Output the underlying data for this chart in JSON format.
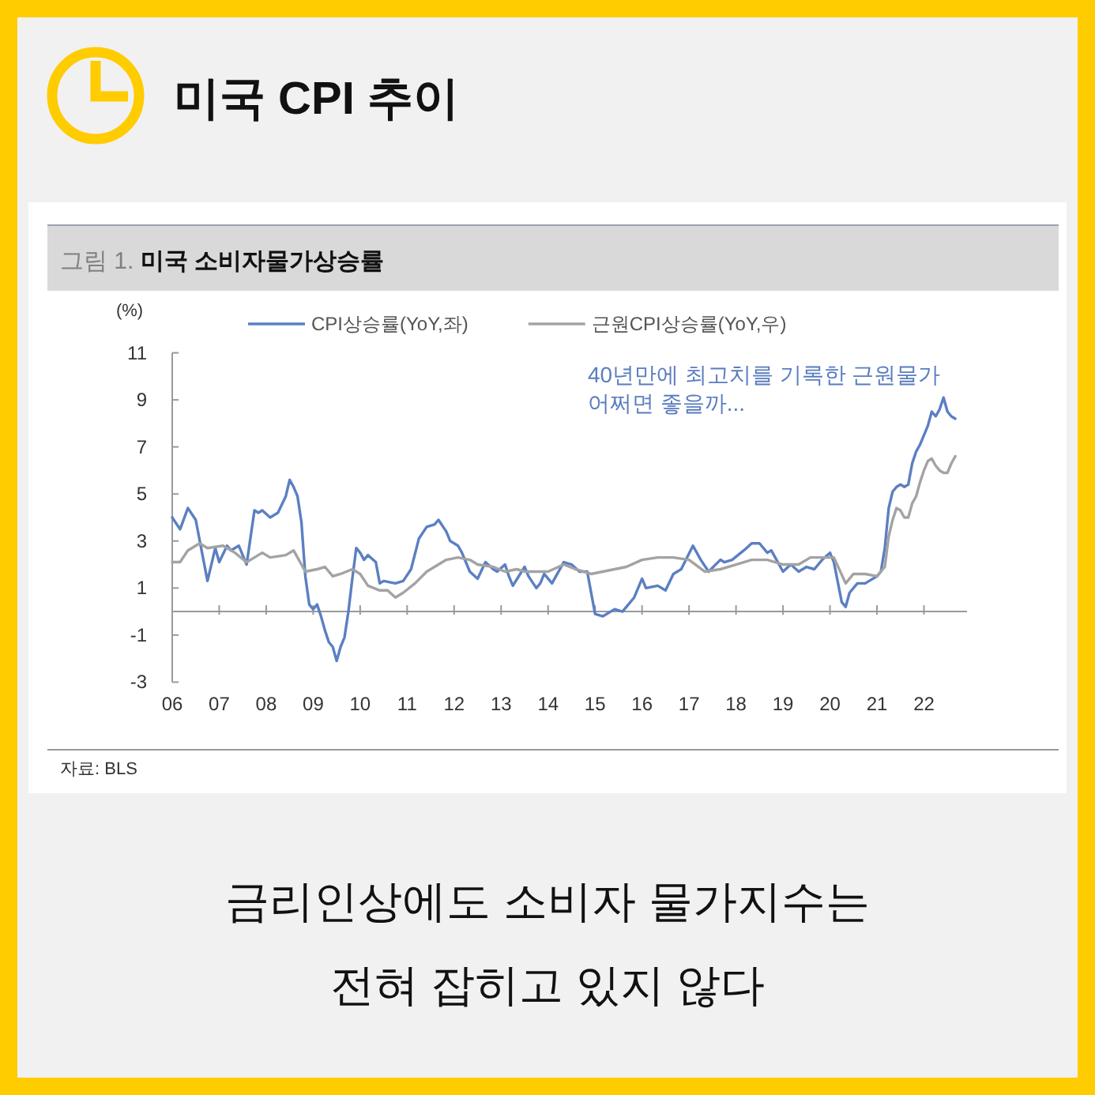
{
  "chart_data": {
    "type": "line",
    "title": "미국 CPI 추이",
    "subtitle": "그림 1. **미국 소비자물가상승률**",
    "ylabel": "(%)",
    "annotations": [
      "40년만에 최고치를 기록한 근원물가 어쩌면 좋을까...",
      "자료: BLS",
      "금리인상에도 소비자 물가지수는 전혀 잡히고 있지 않다"
    ],
    "xlim": [
      "2006-01",
      "2022-12"
    ],
    "xticks": [
      {
        "value": "2006",
        "label": "06"
      },
      {
        "value": "2007",
        "label": "07"
      },
      {
        "value": "2008",
        "label": "08"
      },
      {
        "value": "2009",
        "label": "09"
      },
      {
        "value": "2010",
        "label": "10"
      },
      {
        "value": "2011",
        "label": "11"
      },
      {
        "value": "2012",
        "label": "12"
      },
      {
        "value": "2013",
        "label": "13"
      },
      {
        "value": "2014",
        "label": "14"
      },
      {
        "value": "2015",
        "label": "15"
      },
      {
        "value": "2016",
        "label": "16"
      },
      {
        "value": "2017",
        "label": "17"
      },
      {
        "value": "2018",
        "label": "18"
      },
      {
        "value": "2019",
        "label": "19"
      },
      {
        "value": "2020",
        "label": "20"
      },
      {
        "value": "2021",
        "label": "21"
      },
      {
        "value": "2022",
        "label": "22"
      }
    ],
    "ylim": [
      -3,
      11
    ],
    "yticks": [
      -3,
      -1,
      1,
      3,
      5,
      7,
      9,
      11
    ],
    "legend": "top",
    "series": [
      {
        "name": "CPI상승률(YoY,좌)",
        "color": "#5b7fc2",
        "x": [
          "2006-01",
          "2006-03",
          "2006-05",
          "2006-07",
          "2006-10",
          "2006-12",
          "2007-01",
          "2007-03",
          "2007-04",
          "2007-06",
          "2007-08",
          "2007-10",
          "2007-11",
          "2007-12",
          "2008-02",
          "2008-04",
          "2008-06",
          "2008-07",
          "2008-08",
          "2008-09",
          "2008-10",
          "2008-11",
          "2008-12",
          "2009-01",
          "2009-02",
          "2009-03",
          "2009-04",
          "2009-05",
          "2009-06",
          "2009-07",
          "2009-08",
          "2009-09",
          "2009-10",
          "2009-11",
          "2009-12",
          "2010-01",
          "2010-02",
          "2010-03",
          "2010-05",
          "2010-06",
          "2010-07",
          "2010-10",
          "2010-12",
          "2011-02",
          "2011-04",
          "2011-06",
          "2011-08",
          "2011-09",
          "2011-11",
          "2011-12",
          "2012-02",
          "2012-03",
          "2012-05",
          "2012-07",
          "2012-09",
          "2012-11",
          "2012-12",
          "2013-02",
          "2013-03",
          "2013-04",
          "2013-07",
          "2013-08",
          "2013-10",
          "2013-11",
          "2013-12",
          "2014-02",
          "2014-05",
          "2014-07",
          "2014-09",
          "2014-11",
          "2015-01",
          "2015-03",
          "2015-06",
          "2015-08",
          "2015-11",
          "2016-01",
          "2016-02",
          "2016-05",
          "2016-07",
          "2016-09",
          "2016-11",
          "2017-02",
          "2017-04",
          "2017-06",
          "2017-09",
          "2017-10",
          "2017-12",
          "2018-03",
          "2018-05",
          "2018-07",
          "2018-09",
          "2018-10",
          "2019-01",
          "2019-03",
          "2019-05",
          "2019-07",
          "2019-09",
          "2019-11",
          "2020-01",
          "2020-02",
          "2020-04",
          "2020-05",
          "2020-06",
          "2020-08",
          "2020-10",
          "2020-12",
          "2021-01",
          "2021-02",
          "2021-03",
          "2021-04",
          "2021-05",
          "2021-06",
          "2021-07",
          "2021-08",
          "2021-09",
          "2021-10",
          "2021-11",
          "2021-12",
          "2022-01",
          "2022-02",
          "2022-03",
          "2022-04",
          "2022-05",
          "2022-06",
          "2022-07",
          "2022-08",
          "2022-09"
        ],
        "values": [
          4.0,
          3.5,
          4.4,
          3.9,
          1.3,
          2.7,
          2.1,
          2.8,
          2.6,
          2.8,
          2.0,
          4.3,
          4.2,
          4.3,
          4.0,
          4.2,
          4.9,
          5.6,
          5.3,
          4.9,
          3.8,
          1.5,
          0.3,
          0.1,
          0.3,
          -0.2,
          -0.8,
          -1.3,
          -1.5,
          -2.1,
          -1.5,
          -1.1,
          0.0,
          1.4,
          2.7,
          2.5,
          2.2,
          2.4,
          2.1,
          1.2,
          1.3,
          1.2,
          1.3,
          1.8,
          3.1,
          3.6,
          3.7,
          3.9,
          3.4,
          3.0,
          2.8,
          2.5,
          1.7,
          1.4,
          2.1,
          1.8,
          1.7,
          2.0,
          1.5,
          1.1,
          1.9,
          1.5,
          1.0,
          1.2,
          1.6,
          1.2,
          2.1,
          2.0,
          1.7,
          1.7,
          -0.1,
          -0.2,
          0.1,
          0.0,
          0.6,
          1.4,
          1.0,
          1.1,
          0.9,
          1.6,
          1.8,
          2.8,
          2.2,
          1.7,
          2.2,
          2.1,
          2.2,
          2.6,
          2.9,
          2.9,
          2.5,
          2.6,
          1.7,
          2.0,
          1.7,
          1.9,
          1.8,
          2.2,
          2.5,
          2.1,
          0.4,
          0.2,
          0.8,
          1.2,
          1.2,
          1.4,
          1.5,
          1.7,
          2.7,
          4.4,
          5.1,
          5.3,
          5.4,
          5.3,
          5.4,
          6.3,
          6.8,
          7.1,
          7.5,
          7.9,
          8.5,
          8.3,
          8.6,
          9.1,
          8.5,
          8.3,
          8.2
        ]
      },
      {
        "name": "근원CPI상승률(YoY,우)",
        "color": "#a3a3a3",
        "x": [
          "2006-01",
          "2006-03",
          "2006-05",
          "2006-08",
          "2006-10",
          "2007-02",
          "2007-05",
          "2007-08",
          "2007-10",
          "2007-12",
          "2008-02",
          "2008-06",
          "2008-08",
          "2008-11",
          "2009-02",
          "2009-04",
          "2009-06",
          "2009-08",
          "2009-11",
          "2010-01",
          "2010-03",
          "2010-06",
          "2010-08",
          "2010-10",
          "2010-12",
          "2011-03",
          "2011-06",
          "2011-09",
          "2011-11",
          "2012-02",
          "2012-05",
          "2012-07",
          "2012-11",
          "2013-02",
          "2013-05",
          "2013-07",
          "2013-10",
          "2014-01",
          "2014-05",
          "2014-08",
          "2014-12",
          "2015-03",
          "2015-09",
          "2016-01",
          "2016-05",
          "2016-09",
          "2017-01",
          "2017-05",
          "2017-09",
          "2018-01",
          "2018-05",
          "2018-09",
          "2019-01",
          "2019-05",
          "2019-08",
          "2019-11",
          "2020-02",
          "2020-05",
          "2020-07",
          "2020-10",
          "2021-01",
          "2021-03",
          "2021-04",
          "2021-05",
          "2021-06",
          "2021-07",
          "2021-08",
          "2021-09",
          "2021-10",
          "2021-11",
          "2021-12",
          "2022-01",
          "2022-02",
          "2022-03",
          "2022-04",
          "2022-05",
          "2022-06",
          "2022-07",
          "2022-08",
          "2022-09"
        ],
        "values": [
          2.1,
          2.1,
          2.6,
          2.9,
          2.7,
          2.8,
          2.5,
          2.1,
          2.3,
          2.5,
          2.3,
          2.4,
          2.6,
          1.7,
          1.8,
          1.9,
          1.5,
          1.6,
          1.8,
          1.6,
          1.1,
          0.9,
          0.9,
          0.6,
          0.8,
          1.2,
          1.7,
          2.0,
          2.2,
          2.3,
          2.2,
          2.0,
          1.9,
          1.7,
          1.8,
          1.7,
          1.7,
          1.7,
          2.0,
          1.8,
          1.6,
          1.7,
          1.9,
          2.2,
          2.3,
          2.3,
          2.2,
          1.7,
          1.8,
          2.0,
          2.2,
          2.2,
          2.0,
          2.0,
          2.3,
          2.3,
          2.3,
          1.2,
          1.6,
          1.6,
          1.5,
          1.9,
          3.2,
          3.9,
          4.4,
          4.3,
          4.0,
          4.0,
          4.6,
          4.9,
          5.5,
          6.0,
          6.4,
          6.5,
          6.2,
          6.0,
          5.9,
          5.9,
          6.3,
          6.6
        ]
      }
    ]
  }
}
